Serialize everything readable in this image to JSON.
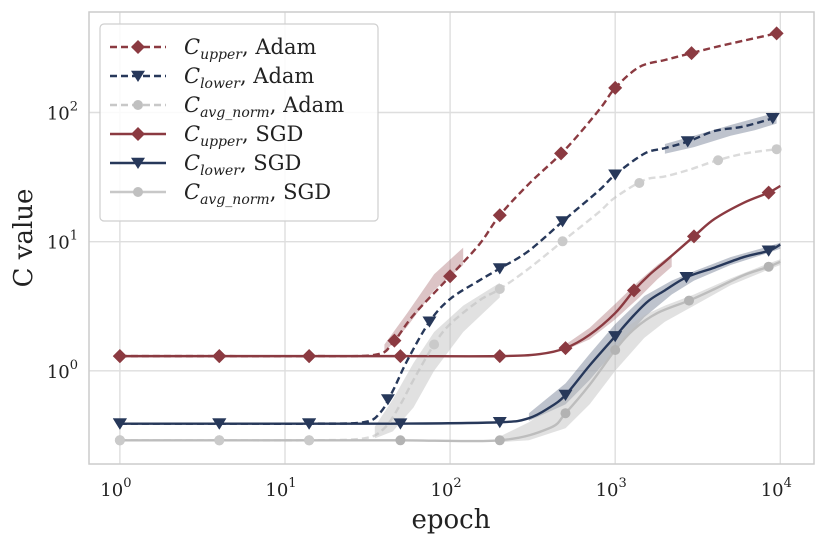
{
  "chart_data": {
    "type": "line",
    "xscale": "log",
    "yscale": "log",
    "xlabel": "epoch",
    "ylabel": "C value",
    "xlim": [
      0.65,
      16000
    ],
    "ylim": [
      0.19,
      600
    ],
    "x_ticks": [
      {
        "value": 1,
        "base": "10",
        "exp": "0"
      },
      {
        "value": 10,
        "base": "10",
        "exp": "1"
      },
      {
        "value": 100,
        "base": "10",
        "exp": "2"
      },
      {
        "value": 1000,
        "base": "10",
        "exp": "3"
      },
      {
        "value": 10000,
        "base": "10",
        "exp": "4"
      }
    ],
    "y_ticks": [
      {
        "value": 1,
        "base": "10",
        "exp": "0"
      },
      {
        "value": 10,
        "base": "10",
        "exp": "1"
      },
      {
        "value": 100,
        "base": "10",
        "exp": "2"
      }
    ],
    "grid": true,
    "legend_position": "top-left",
    "colors": {
      "upper": "#8b3a41",
      "lower": "#27385a",
      "avg": "#bdbdbd"
    },
    "series": [
      {
        "name": "C_upper, Adam",
        "sym": "C",
        "sub": "upper",
        "suffix": ", Adam",
        "color_key": "upper",
        "dash": true,
        "marker": "diamond",
        "x": [
          1,
          4,
          14,
          35,
          45,
          60,
          100,
          150,
          200,
          300,
          500,
          800,
          1000,
          1400,
          2000,
          2800,
          4000,
          6000,
          9500
        ],
        "y": [
          1.3,
          1.3,
          1.3,
          1.33,
          1.65,
          2.7,
          5.4,
          9.5,
          16,
          28,
          52,
          105,
          155,
          225,
          255,
          285,
          320,
          360,
          410
        ],
        "markers": [
          1,
          4,
          14,
          46,
          100,
          200,
          470,
          1000,
          2900,
          9500
        ]
      },
      {
        "name": "C_lower, Adam",
        "sym": "C",
        "sub": "lower",
        "suffix": ", Adam",
        "color_key": "lower",
        "dash": true,
        "marker": "triangle",
        "x": [
          1,
          4,
          14,
          30,
          38,
          45,
          55,
          75,
          100,
          150,
          200,
          300,
          500,
          800,
          1000,
          1500,
          2000,
          2800,
          4000,
          6000,
          9500
        ],
        "y": [
          0.39,
          0.39,
          0.39,
          0.4,
          0.48,
          0.7,
          1.2,
          2.4,
          3.6,
          5.0,
          6.2,
          8.5,
          15,
          25,
          33,
          48,
          53,
          60,
          72,
          78,
          92
        ],
        "markers": [
          1,
          4,
          14,
          42,
          75,
          200,
          480,
          1000,
          2750,
          9000
        ]
      },
      {
        "name": "C_avg_norm, Adam",
        "sym": "C",
        "sub": "avg_norm",
        "suffix": ", Adam",
        "color_key": "avg",
        "dash": true,
        "marker": "circle",
        "x": [
          1,
          4,
          14,
          30,
          40,
          50,
          60,
          80,
          100,
          150,
          200,
          300,
          500,
          800,
          1000,
          1500,
          2000,
          2800,
          4000,
          6000,
          9500
        ],
        "y": [
          0.29,
          0.29,
          0.29,
          0.3,
          0.36,
          0.55,
          0.85,
          1.6,
          2.3,
          3.5,
          4.3,
          6.2,
          10.5,
          17,
          22,
          30,
          32,
          36,
          42,
          48,
          52
        ],
        "markers": [
          1,
          4,
          14,
          80,
          200,
          480,
          1400,
          4200,
          9500
        ]
      },
      {
        "name": "C_upper, SGD",
        "sym": "C",
        "sub": "upper",
        "suffix": ", SGD",
        "color_key": "upper",
        "dash": false,
        "marker": "diamond",
        "x": [
          1,
          4,
          14,
          50,
          200,
          350,
          500,
          700,
          1000,
          1300,
          1600,
          2000,
          3000,
          4000,
          6000,
          8500,
          10000
        ],
        "y": [
          1.3,
          1.3,
          1.3,
          1.3,
          1.3,
          1.35,
          1.5,
          1.9,
          2.8,
          4.2,
          5.5,
          7.0,
          11,
          15,
          20,
          24,
          27
        ],
        "markers": [
          1,
          4,
          14,
          50,
          200,
          500,
          1300,
          3000,
          8500
        ]
      },
      {
        "name": "C_lower, SGD",
        "sym": "C",
        "sub": "lower",
        "suffix": ", SGD",
        "color_key": "lower",
        "dash": false,
        "marker": "triangle",
        "x": [
          1,
          4,
          14,
          50,
          200,
          300,
          400,
          500,
          700,
          1000,
          1300,
          1600,
          2000,
          2700,
          4000,
          6000,
          8500,
          10000
        ],
        "y": [
          0.39,
          0.39,
          0.39,
          0.39,
          0.4,
          0.43,
          0.52,
          0.65,
          1.1,
          1.85,
          2.7,
          3.5,
          4.2,
          5.3,
          6.3,
          7.6,
          8.5,
          9.5
        ],
        "markers": [
          1,
          4,
          14,
          50,
          200,
          500,
          1000,
          2700,
          8500
        ]
      },
      {
        "name": "C_avg_norm, SGD",
        "sym": "C",
        "sub": "avg_norm",
        "suffix": ", SGD",
        "color_key": "avg",
        "dash": false,
        "marker": "circle",
        "x": [
          1,
          4,
          14,
          50,
          200,
          400,
          500,
          700,
          1000,
          1300,
          1800,
          2800,
          4000,
          6000,
          8500,
          10000
        ],
        "y": [
          0.29,
          0.29,
          0.29,
          0.29,
          0.29,
          0.36,
          0.47,
          0.78,
          1.45,
          2.1,
          2.8,
          3.5,
          4.3,
          5.5,
          6.4,
          7.0
        ],
        "markers": [
          1,
          4,
          14,
          50,
          200,
          500,
          1000,
          2800,
          8500
        ]
      }
    ],
    "bands": [
      {
        "series": "C_upper, Adam",
        "x": [
          40,
          55,
          80,
          120
        ],
        "low": [
          1.38,
          2.2,
          4.2,
          6.6
        ],
        "high": [
          1.6,
          2.8,
          5.6,
          9.0
        ]
      },
      {
        "series": "C_lower, Adam",
        "x": [
          2000,
          3000,
          5000,
          7000,
          9500
        ],
        "low": [
          48,
          54,
          66,
          73,
          82
        ],
        "high": [
          57,
          66,
          80,
          90,
          100
        ]
      },
      {
        "series": "C_avg_norm, Adam",
        "x": [
          35,
          45,
          60,
          80,
          120,
          200
        ],
        "low": [
          0.3,
          0.34,
          0.52,
          1.0,
          2.0,
          3.7
        ],
        "high": [
          0.37,
          0.6,
          1.15,
          2.0,
          3.2,
          4.8
        ]
      },
      {
        "series": "C_upper, SGD",
        "x": [
          500,
          700,
          1000,
          1400,
          1800,
          2200
        ],
        "low": [
          1.45,
          1.75,
          2.5,
          3.7,
          5.1,
          6.4
        ],
        "high": [
          1.6,
          2.15,
          3.3,
          5.0,
          6.6,
          8.0
        ]
      },
      {
        "series": "C_lower, SGD",
        "x": [
          300,
          500,
          700,
          1000,
          1500,
          2200,
          3000,
          5000,
          8000,
          10000
        ],
        "low": [
          0.41,
          0.55,
          0.85,
          1.45,
          2.6,
          3.9,
          5.0,
          6.6,
          8.0,
          8.8
        ],
        "high": [
          0.47,
          0.8,
          1.35,
          2.3,
          3.8,
          5.0,
          5.9,
          7.6,
          9.0,
          9.8
        ]
      },
      {
        "series": "C_avg_norm, SGD",
        "x": [
          200,
          300,
          500,
          700,
          1000,
          1500,
          2000,
          3000,
          5000,
          8000,
          10000
        ],
        "low": [
          0.28,
          0.29,
          0.36,
          0.55,
          1.0,
          1.8,
          2.4,
          3.2,
          4.6,
          5.9,
          6.6
        ],
        "high": [
          0.31,
          0.4,
          0.62,
          1.05,
          1.9,
          2.7,
          3.2,
          3.9,
          5.2,
          6.6,
          7.3
        ]
      }
    ]
  }
}
